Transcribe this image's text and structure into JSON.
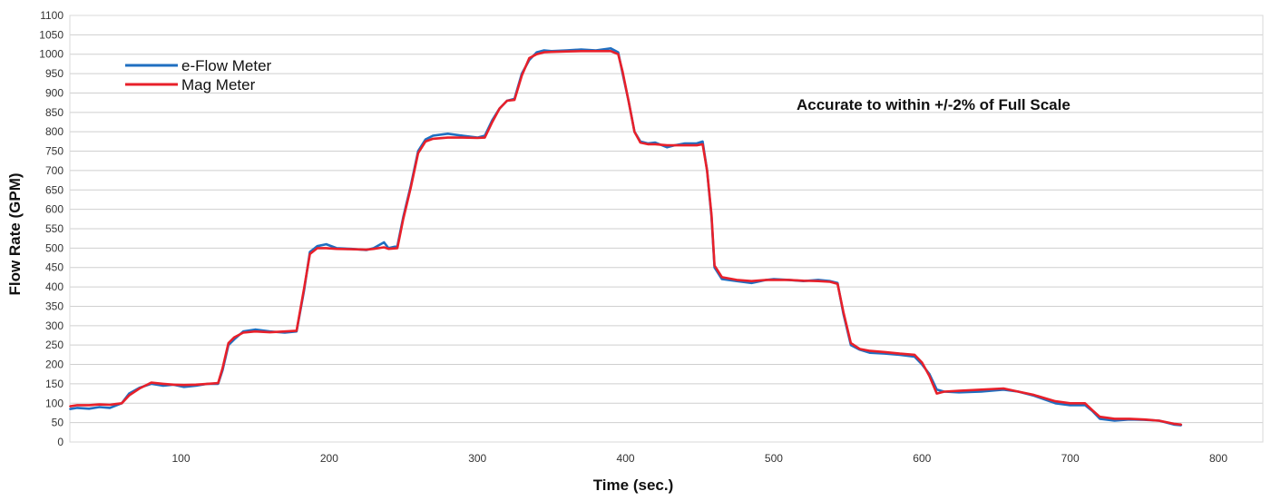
{
  "chart_data": {
    "type": "line",
    "title": "",
    "xlabel": "Time (sec.)",
    "ylabel": "Flow Rate (GPM)",
    "xlim": [
      25,
      830
    ],
    "ylim": [
      0,
      1100
    ],
    "xticks": [
      100,
      200,
      300,
      400,
      500,
      600,
      700,
      800
    ],
    "yticks": [
      0,
      50,
      100,
      150,
      200,
      250,
      300,
      350,
      400,
      450,
      500,
      550,
      600,
      650,
      700,
      750,
      800,
      850,
      900,
      950,
      1000,
      1050,
      1100
    ],
    "grid": "horizontal",
    "legend_position": "top-left",
    "annotation": "Accurate to within +/-2% of Full Scale",
    "series": [
      {
        "name": "e-Flow Meter",
        "color": "#1f6fc1",
        "x": [
          25,
          30,
          38,
          45,
          52,
          60,
          65,
          72,
          80,
          88,
          95,
          102,
          110,
          118,
          125,
          128,
          132,
          136,
          142,
          150,
          160,
          170,
          178,
          183,
          187,
          192,
          198,
          205,
          215,
          225,
          230,
          237,
          240,
          246,
          250,
          255,
          260,
          265,
          270,
          280,
          290,
          300,
          305,
          310,
          315,
          320,
          325,
          330,
          335,
          340,
          345,
          350,
          360,
          370,
          380,
          390,
          395,
          398,
          402,
          406,
          410,
          415,
          420,
          428,
          433,
          440,
          448,
          452,
          455,
          458,
          460,
          465,
          475,
          485,
          495,
          500,
          510,
          520,
          530,
          538,
          543,
          547,
          552,
          558,
          565,
          575,
          585,
          595,
          600,
          605,
          610,
          615,
          625,
          640,
          655,
          665,
          675,
          690,
          700,
          710,
          715,
          720,
          730,
          740,
          750,
          760,
          770,
          775
        ],
        "values": [
          85,
          88,
          86,
          90,
          88,
          100,
          125,
          140,
          150,
          145,
          148,
          142,
          145,
          150,
          150,
          185,
          250,
          265,
          285,
          290,
          285,
          282,
          285,
          390,
          490,
          505,
          510,
          500,
          498,
          495,
          500,
          515,
          500,
          505,
          580,
          660,
          750,
          780,
          790,
          795,
          790,
          785,
          790,
          830,
          860,
          880,
          885,
          950,
          985,
          1005,
          1010,
          1008,
          1010,
          1012,
          1010,
          1015,
          1005,
          950,
          880,
          800,
          775,
          770,
          772,
          760,
          765,
          770,
          770,
          775,
          700,
          580,
          450,
          420,
          415,
          410,
          418,
          420,
          418,
          415,
          418,
          415,
          410,
          330,
          250,
          238,
          230,
          228,
          225,
          220,
          200,
          175,
          135,
          130,
          128,
          130,
          135,
          130,
          120,
          100,
          95,
          95,
          80,
          60,
          55,
          58,
          57,
          55,
          45,
          43
        ]
      },
      {
        "name": "Mag Meter",
        "color": "#e8202a",
        "x": [
          25,
          30,
          38,
          45,
          52,
          60,
          65,
          72,
          80,
          88,
          95,
          102,
          110,
          118,
          125,
          128,
          132,
          136,
          142,
          150,
          160,
          170,
          178,
          183,
          187,
          192,
          198,
          205,
          215,
          225,
          230,
          237,
          240,
          246,
          250,
          255,
          260,
          265,
          270,
          280,
          290,
          300,
          305,
          310,
          315,
          320,
          325,
          330,
          335,
          340,
          345,
          350,
          360,
          370,
          380,
          390,
          395,
          398,
          402,
          406,
          410,
          415,
          420,
          428,
          433,
          440,
          448,
          452,
          455,
          458,
          460,
          465,
          475,
          485,
          495,
          500,
          510,
          520,
          530,
          538,
          543,
          547,
          552,
          558,
          565,
          575,
          585,
          595,
          600,
          605,
          610,
          615,
          625,
          640,
          655,
          665,
          675,
          690,
          700,
          710,
          715,
          720,
          730,
          740,
          750,
          760,
          770,
          775
        ],
        "values": [
          92,
          95,
          95,
          97,
          96,
          100,
          120,
          138,
          153,
          150,
          148,
          147,
          148,
          150,
          152,
          190,
          255,
          270,
          282,
          285,
          283,
          285,
          287,
          395,
          485,
          500,
          500,
          498,
          497,
          496,
          498,
          502,
          498,
          500,
          575,
          655,
          745,
          775,
          782,
          785,
          785,
          784,
          785,
          825,
          860,
          880,
          882,
          945,
          990,
          1000,
          1005,
          1006,
          1007,
          1008,
          1008,
          1008,
          1000,
          955,
          880,
          800,
          772,
          768,
          768,
          765,
          765,
          765,
          765,
          768,
          700,
          585,
          455,
          425,
          418,
          415,
          418,
          418,
          418,
          416,
          415,
          413,
          408,
          335,
          255,
          240,
          235,
          232,
          228,
          225,
          205,
          170,
          125,
          130,
          132,
          135,
          138,
          130,
          122,
          105,
          100,
          100,
          82,
          65,
          60,
          60,
          58,
          55,
          47,
          45
        ]
      }
    ]
  }
}
